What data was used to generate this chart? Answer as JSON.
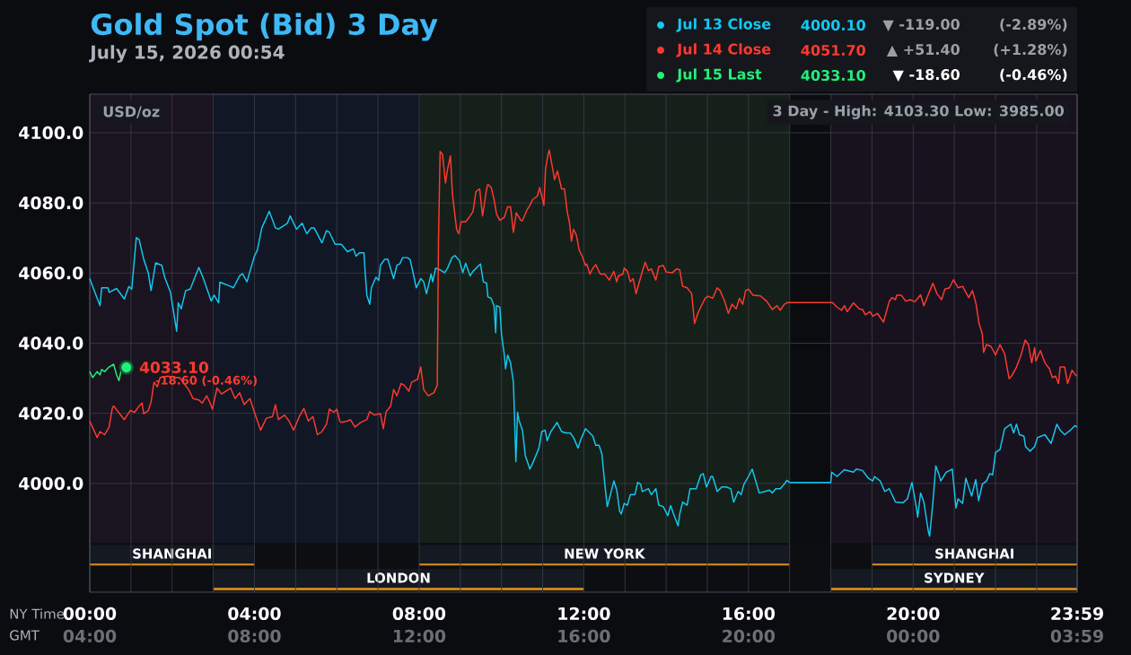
{
  "chart_data": {
    "type": "line",
    "title": "Gold Spot (Bid) 3 Day",
    "subtitle": "July 15, 2026 00:54",
    "xlabel": "NY Time",
    "x2label": "GMT",
    "xlim": [
      0,
      23.983
    ],
    "ylim": [
      3969,
      4111
    ],
    "x2lim": [
      "2026-07-15T04:00",
      "2026-07-16T03:59"
    ],
    "xticks": [
      {
        "value": 0,
        "label": "00:00"
      },
      {
        "value": 1,
        "label": null
      },
      {
        "value": 2,
        "label": null
      },
      {
        "value": 3,
        "label": null
      },
      {
        "value": 4,
        "label": "04:00"
      },
      {
        "value": 5,
        "label": null
      },
      {
        "value": 6,
        "label": null
      },
      {
        "value": 7,
        "label": null
      },
      {
        "value": 8,
        "label": "08:00"
      },
      {
        "value": 9,
        "label": null
      },
      {
        "value": 10,
        "label": null
      },
      {
        "value": 11,
        "label": null
      },
      {
        "value": 12,
        "label": "12:00"
      },
      {
        "value": 13,
        "label": null
      },
      {
        "value": 14,
        "label": null
      },
      {
        "value": 15,
        "label": null
      },
      {
        "value": 16,
        "label": "16:00"
      },
      {
        "value": 17,
        "label": null
      },
      {
        "value": 18,
        "label": null
      },
      {
        "value": 19,
        "label": null
      },
      {
        "value": 20,
        "label": "20:00"
      },
      {
        "value": 21,
        "label": null
      },
      {
        "value": 22,
        "label": null
      },
      {
        "value": 23,
        "label": null
      },
      {
        "value": 23.983,
        "label": "23:59"
      }
    ],
    "x2ticks": [
      {
        "value": "2026-07-15T04:00",
        "label": "04:00"
      },
      {
        "value": "2026-07-15T08:00",
        "label": "08:00"
      },
      {
        "value": "2026-07-15T12:00",
        "label": "12:00"
      },
      {
        "value": "2026-07-15T16:00",
        "label": "16:00"
      },
      {
        "value": "2026-07-15T20:00",
        "label": "20:00"
      },
      {
        "value": "2026-07-16T00:00",
        "label": "00:00"
      },
      {
        "value": "2026-07-16T03:59",
        "label": "03:59"
      }
    ],
    "yticks": [
      {
        "value": 4000,
        "label": "4000.0"
      },
      {
        "value": 4020,
        "label": "4020.0"
      },
      {
        "value": 4040,
        "label": "4040.0"
      },
      {
        "value": 4060,
        "label": "4060.0"
      },
      {
        "value": 4080,
        "label": "4080.0"
      },
      {
        "value": 4100,
        "label": "4100.0"
      }
    ],
    "grid": true,
    "legend": "top right",
    "series": [
      {
        "name": "Jul 13 Close",
        "color": "#14c8f0",
        "x": [
          0,
          0.07,
          0.25,
          0.29,
          0.44,
          0.47,
          0.65,
          0.84,
          0.95,
          1.02,
          1.13,
          1.2,
          1.31,
          1.42,
          1.49,
          1.6,
          1.75,
          1.82,
          1.96,
          2.11,
          2.15,
          2.22,
          2.33,
          2.44,
          2.65,
          2.76,
          2.95,
          3.02,
          3.13,
          3.16,
          3.42,
          3.49,
          3.64,
          3.71,
          3.82,
          3.89,
          4.0,
          4.07,
          4.18,
          4.36,
          4.51,
          4.58,
          4.8,
          4.87,
          5.02,
          5.16,
          5.27,
          5.38,
          5.45,
          5.64,
          5.75,
          5.82,
          5.96,
          6.11,
          6.26,
          6.4,
          6.47,
          6.55,
          6.66,
          6.69,
          6.73,
          6.8,
          6.84,
          6.95,
          7.02,
          7.06,
          7.16,
          7.24,
          7.38,
          7.46,
          7.53,
          7.6,
          7.71,
          7.78,
          7.86,
          7.93,
          8.04,
          8.11,
          8.18,
          8.29,
          8.33,
          8.4,
          8.51,
          8.62,
          8.69,
          8.8,
          8.87,
          8.98,
          9.06,
          9.13,
          9.24,
          9.31,
          9.42,
          9.49,
          9.56,
          9.64,
          9.67,
          9.75,
          9.82,
          9.86,
          9.88,
          9.96,
          10.0,
          10.07,
          10.1,
          10.15,
          10.22,
          10.29,
          10.31,
          10.35,
          10.39,
          10.42,
          10.51,
          10.58,
          10.69,
          10.76,
          10.91,
          10.98,
          11.06,
          11.11,
          11.2,
          11.35,
          11.46,
          11.56,
          11.67,
          11.75,
          11.86,
          11.93,
          12.04,
          12.22,
          12.29,
          12.37,
          12.44,
          12.51,
          12.57,
          12.62,
          12.73,
          12.8,
          12.87,
          12.91,
          12.98,
          13.06,
          13.13,
          13.24,
          13.31,
          13.38,
          13.42,
          13.57,
          13.64,
          13.75,
          13.82,
          13.93,
          14.04,
          14.11,
          14.18,
          14.29,
          14.33,
          14.4,
          14.51,
          14.58,
          14.73,
          14.84,
          14.9,
          14.98,
          15.09,
          15.13,
          15.24,
          15.35,
          15.46,
          15.57,
          15.64,
          15.75,
          15.82,
          15.89,
          16.0,
          16.09,
          16.26,
          16.4,
          16.51,
          16.58,
          16.66,
          16.77,
          16.87,
          16.93,
          17.0,
          18.0,
          18.02,
          18.15,
          18.33,
          18.55,
          18.62,
          18.77,
          18.91,
          19.02,
          19.06,
          19.2,
          19.31,
          19.42,
          19.57,
          19.75,
          19.86,
          19.97,
          20.08,
          20.11,
          20.18,
          20.26,
          20.37,
          20.4,
          20.48,
          20.55,
          20.62,
          20.67,
          20.8,
          20.95,
          21.04,
          21.09,
          21.2,
          21.28,
          21.42,
          21.52,
          21.59,
          21.68,
          21.78,
          21.86,
          21.93,
          22.0,
          22.11,
          22.22,
          22.37,
          22.44,
          22.51,
          22.58,
          22.69,
          22.73,
          22.84,
          22.95,
          23.02,
          23.2,
          23.35,
          23.49,
          23.57,
          23.68,
          23.82,
          23.93,
          23.98
        ],
        "values": [
          4058.4,
          4056.2,
          4050.7,
          4055.8,
          4055.8,
          4054.5,
          4055.6,
          4052.6,
          4056.2,
          4055.4,
          4070.1,
          4069.5,
          4063.9,
          4060.1,
          4055.0,
          4062.9,
          4062.2,
          4058.8,
          4054.5,
          4043.4,
          4051.5,
          4049.8,
          4055.0,
          4055.4,
          4061.6,
          4058.4,
          4052.0,
          4053.7,
          4051.5,
          4057.4,
          4056.2,
          4055.8,
          4059.2,
          4059.8,
          4057.5,
          4060.5,
          4064.8,
          4066.5,
          4072.9,
          4077.6,
          4072.9,
          4072.5,
          4074.2,
          4076.3,
          4072.5,
          4074.2,
          4071.2,
          4072.9,
          4072.9,
          4068.6,
          4072.1,
          4071.6,
          4068.2,
          4068.2,
          4066.1,
          4066.9,
          4064.8,
          4065.8,
          4065.8,
          4060.1,
          4053.7,
          4051.1,
          4055.8,
          4058.8,
          4057.9,
          4062.2,
          4063.9,
          4063.9,
          4058.4,
          4062.2,
          4062.6,
          4064.4,
          4064.4,
          4063.9,
          4059.7,
          4055.8,
          4058.4,
          4057.5,
          4054.1,
          4059.7,
          4057.5,
          4061.4,
          4060.9,
          4060.1,
          4061.4,
          4064.4,
          4065.0,
          4063.5,
          4060.1,
          4062.8,
          4059.2,
          4060.5,
          4061.8,
          4062.6,
          4057.5,
          4057.1,
          4053.2,
          4052.8,
          4050.7,
          4043.0,
          4050.7,
          4050.3,
          4042.6,
          4036.6,
          4032.7,
          4036.6,
          4034.4,
          4028.9,
          4021.6,
          4006.2,
          4020.3,
          4018.2,
          4015.2,
          4007.9,
          4004.1,
          4005.8,
          4010.1,
          4014.8,
          4015.2,
          4012.2,
          4014.8,
          4017.4,
          4014.8,
          4014.4,
          4014.4,
          4013.1,
          4010.1,
          4012.6,
          4015.6,
          4013.5,
          4010.9,
          4010.9,
          4008.4,
          3999.8,
          3993.4,
          3995.6,
          4000.7,
          3998.1,
          3992.1,
          3991.3,
          3994.3,
          3993.8,
          3996.8,
          3996.8,
          4000.3,
          3999.8,
          3997.7,
          3998.5,
          3996.8,
          3998.5,
          3993.8,
          3993.4,
          3990.8,
          3993.7,
          3991.3,
          3987.9,
          3991.3,
          3994.7,
          3993.8,
          3998.5,
          3998.5,
          4002.4,
          4002.8,
          3999.0,
          4002.0,
          4002.0,
          3997.7,
          3999.0,
          3999.0,
          3998.5,
          3994.7,
          3997.7,
          3996.8,
          3999.8,
          4002.0,
          4004.1,
          3997.3,
          3997.7,
          3998.1,
          3997.3,
          3998.5,
          3998.5,
          3999.8,
          4000.9,
          4000.3,
          4000.3,
          4003.2,
          4002.0,
          4003.9,
          4003.2,
          4004.1,
          4003.7,
          4001.5,
          4000.7,
          4002.0,
          4000.7,
          3997.7,
          3998.5,
          3994.7,
          3994.5,
          3995.6,
          4000.3,
          3993.0,
          3990.4,
          3997.3,
          3994.7,
          3986.2,
          3985.0,
          3994.7,
          4005.0,
          4002.8,
          4000.7,
          4003.2,
          4004.1,
          3993.0,
          3995.6,
          3994.3,
          4001.5,
          3996.4,
          4001.1,
          3995.1,
          3999.8,
          4000.7,
          4002.8,
          4002.4,
          4008.8,
          4009.7,
          4015.6,
          4016.9,
          4014.4,
          4016.9,
          4013.9,
          4013.5,
          4010.5,
          4009.2,
          4010.5,
          4013.1,
          4013.9,
          4011.4,
          4016.9,
          4015.2,
          4013.9,
          4015.2,
          4016.5,
          4016.1
        ]
      },
      {
        "name": "Jul 14 Close",
        "color": "#ff3a2e",
        "x": [
          0,
          0.18,
          0.25,
          0.36,
          0.47,
          0.55,
          0.58,
          0.84,
          0.98,
          1.09,
          1.2,
          1.27,
          1.31,
          1.42,
          1.49,
          1.56,
          1.64,
          1.71,
          1.89,
          2.11,
          2.18,
          2.4,
          2.51,
          2.65,
          2.73,
          2.84,
          2.91,
          2.98,
          3.09,
          3.2,
          3.42,
          3.53,
          3.64,
          3.75,
          3.89,
          4.0,
          4.15,
          4.29,
          4.44,
          4.51,
          4.58,
          4.73,
          4.84,
          4.95,
          5.09,
          5.2,
          5.31,
          5.42,
          5.53,
          5.64,
          5.75,
          5.82,
          5.93,
          6.0,
          6.07,
          6.11,
          6.26,
          6.33,
          6.44,
          6.58,
          6.73,
          6.8,
          6.91,
          7.06,
          7.13,
          7.2,
          7.31,
          7.38,
          7.46,
          7.56,
          7.64,
          7.75,
          7.82,
          7.96,
          8.04,
          8.11,
          8.22,
          8.36,
          8.44,
          8.45,
          8.47,
          8.51,
          8.57,
          8.64,
          8.69,
          8.76,
          8.81,
          8.91,
          8.96,
          9.02,
          9.13,
          9.24,
          9.31,
          9.38,
          9.47,
          9.54,
          9.64,
          9.67,
          9.75,
          9.82,
          9.88,
          9.96,
          10.07,
          10.15,
          10.22,
          10.29,
          10.36,
          10.47,
          10.51,
          10.62,
          10.69,
          10.76,
          10.87,
          10.93,
          11.03,
          11.07,
          11.13,
          11.16,
          11.24,
          11.29,
          11.36,
          11.46,
          11.53,
          11.6,
          11.65,
          11.7,
          11.75,
          11.82,
          11.89,
          11.96,
          12.04,
          12.07,
          12.15,
          12.22,
          12.29,
          12.4,
          12.51,
          12.62,
          12.73,
          12.8,
          12.84,
          12.95,
          12.98,
          13.06,
          13.13,
          13.2,
          13.27,
          13.38,
          13.49,
          13.57,
          13.64,
          13.75,
          13.82,
          13.93,
          14.0,
          14.15,
          14.26,
          14.33,
          14.4,
          14.51,
          14.62,
          14.69,
          14.77,
          14.84,
          14.95,
          15.02,
          15.13,
          15.24,
          15.31,
          15.42,
          15.51,
          15.6,
          15.7,
          15.78,
          15.86,
          15.93,
          16.0,
          16.11,
          16.29,
          16.44,
          16.58,
          16.69,
          16.77,
          16.87,
          16.95,
          18.04,
          18.15,
          18.26,
          18.33,
          18.4,
          18.55,
          18.69,
          18.77,
          18.84,
          18.95,
          19.02,
          19.13,
          19.28,
          19.42,
          19.49,
          19.57,
          19.6,
          19.71,
          19.82,
          19.93,
          20.04,
          20.18,
          20.26,
          20.33,
          20.48,
          20.58,
          20.69,
          20.77,
          20.88,
          20.98,
          21.09,
          21.2,
          21.35,
          21.44,
          21.53,
          21.6,
          21.68,
          21.71,
          21.78,
          21.89,
          22.0,
          22.11,
          22.22,
          22.33,
          22.4,
          22.51,
          22.62,
          22.72,
          22.8,
          22.88,
          22.95,
          22.98,
          23.09,
          23.2,
          23.31,
          23.38,
          23.46,
          23.53,
          23.57,
          23.68,
          23.75,
          23.86,
          23.97
        ],
        "values": [
          4017.8,
          4013.1,
          4014.8,
          4013.9,
          4016.1,
          4021.6,
          4022.1,
          4018.2,
          4020.8,
          4020.3,
          4022.1,
          4022.9,
          4019.9,
          4020.8,
          4023.3,
          4028.9,
          4027.6,
          4030.2,
          4030.6,
          4030.2,
          4030.2,
          4026.8,
          4024.2,
          4023.8,
          4022.9,
          4025.0,
          4023.3,
          4021.2,
          4027.2,
          4025.5,
          4027.2,
          4024.2,
          4025.9,
          4022.5,
          4024.2,
          4020.3,
          4015.2,
          4018.6,
          4019.1,
          4022.5,
          4018.2,
          4019.5,
          4017.8,
          4015.2,
          4019.1,
          4021.4,
          4017.8,
          4019.1,
          4013.9,
          4014.8,
          4016.9,
          4021.2,
          4020.3,
          4021.2,
          4017.8,
          4017.4,
          4017.8,
          4018.2,
          4016.1,
          4017.4,
          4018.2,
          4020.5,
          4019.5,
          4019.9,
          4015.6,
          4020.5,
          4022.1,
          4026.8,
          4025.0,
          4028.5,
          4028.0,
          4026.3,
          4028.9,
          4029.7,
          4033.2,
          4026.8,
          4025.0,
          4025.9,
          4028.0,
          4041.7,
          4069.1,
          4094.7,
          4093.8,
          4085.7,
          4089.6,
          4093.4,
          4082.3,
          4072.5,
          4071.2,
          4074.6,
          4074.6,
          4076.3,
          4077.6,
          4083.2,
          4084.0,
          4076.3,
          4084.0,
          4085.3,
          4084.4,
          4081.0,
          4076.8,
          4075.0,
          4075.9,
          4078.9,
          4078.9,
          4071.6,
          4077.2,
          4075.0,
          4075.0,
          4078.0,
          4079.3,
          4081.0,
          4081.9,
          4084.4,
          4079.3,
          4089.6,
          4093.8,
          4095.1,
          4090.0,
          4086.6,
          4089.1,
          4084.0,
          4084.0,
          4077.2,
          4074.6,
          4069.1,
          4072.5,
          4070.8,
          4066.5,
          4064.8,
          4062.2,
          4062.6,
          4059.7,
          4061.4,
          4062.4,
          4059.7,
          4059.7,
          4058.0,
          4060.5,
          4057.5,
          4059.2,
          4059.7,
          4061.4,
          4060.5,
          4057.5,
          4058.4,
          4054.1,
          4058.8,
          4063.1,
          4060.7,
          4061.2,
          4058.0,
          4061.8,
          4062.2,
          4060.3,
          4060.1,
          4061.2,
          4060.9,
          4056.2,
          4055.8,
          4054.1,
          4045.6,
          4048.5,
          4050.3,
          4052.8,
          4053.4,
          4052.8,
          4055.8,
          4055.0,
          4052.0,
          4048.5,
          4051.1,
          4049.8,
          4052.8,
          4051.1,
          4055.0,
          4055.4,
          4053.7,
          4053.5,
          4052.0,
          4049.6,
          4050.7,
          4049.4,
          4051.1,
          4051.6,
          4051.6,
          4050.3,
          4049.4,
          4050.7,
          4049.0,
          4051.5,
          4049.8,
          4049.6,
          4048.1,
          4049.0,
          4047.7,
          4048.5,
          4046.0,
          4052.0,
          4053.0,
          4052.4,
          4053.7,
          4053.7,
          4052.0,
          4052.4,
          4051.8,
          4053.8,
          4050.7,
          4052.8,
          4057.1,
          4054.1,
          4052.4,
          4055.4,
          4055.8,
          4058.1,
          4055.8,
          4056.2,
          4053.0,
          4055.0,
          4051.1,
          4045.6,
          4042.6,
          4037.4,
          4039.6,
          4039.1,
          4036.6,
          4039.6,
          4037.0,
          4029.9,
          4030.8,
          4033.2,
          4036.6,
          4040.9,
          4039.6,
          4034.4,
          4038.7,
          4034.9,
          4037.9,
          4034.4,
          4032.7,
          4030.2,
          4030.6,
          4028.5,
          4033.2,
          4033.2,
          4028.5,
          4032.3,
          4030.6
        ]
      },
      {
        "name": "Jul 15 Last",
        "color": "#22f07a",
        "x": [
          0,
          0.07,
          0.18,
          0.25,
          0.29,
          0.36,
          0.47,
          0.58,
          0.65,
          0.71,
          0.76,
          0.89
        ],
        "values": [
          4031.9,
          4030.2,
          4031.9,
          4031.0,
          4032.5,
          4031.9,
          4033.2,
          4034.0,
          4031.0,
          4029.3,
          4032.3,
          4033.1
        ]
      }
    ],
    "bands": [
      {
        "axis": "x",
        "from": 0,
        "to": 3,
        "color": "#1a1420"
      },
      {
        "axis": "x",
        "from": 3,
        "to": 8,
        "color": "#111725"
      },
      {
        "axis": "x",
        "from": 8,
        "to": 17,
        "color": "#16201a"
      },
      {
        "axis": "x",
        "from": 18,
        "to": 23.983,
        "color": "#18121f"
      },
      {
        "axis": "x",
        "from": 0,
        "to": 4,
        "label": "SHANGHAI",
        "color": "#151922"
      },
      {
        "axis": "x",
        "from": 8,
        "to": 17,
        "label": "NEW YORK",
        "color": "#151922"
      },
      {
        "axis": "x",
        "from": 19,
        "to": 23.983,
        "label": "SHANGHAI",
        "color": "#151922"
      },
      {
        "axis": "x",
        "from": 3,
        "to": 12,
        "label": "LONDON",
        "color": "#151922"
      },
      {
        "axis": "x",
        "from": 18,
        "to": 23.983,
        "label": "SYDNEY",
        "color": "#151922"
      }
    ],
    "annotations": [
      "4000.10",
      "▼ -119.00",
      "(-2.89%)",
      "4051.70",
      "▲ +51.40",
      "(+1.28%)",
      "4033.10",
      "▼ -18.60",
      "(-0.46%)",
      "USD/oz",
      "3 Day - High: 4103.30 Low: 3985.00",
      {
        "text": "4033.10",
        "x": 0.89,
        "y": 4033.1
      },
      {
        "text": "-18.60 (-0.46%)",
        "x": 0.89,
        "y": 4033.1
      }
    ]
  }
}
